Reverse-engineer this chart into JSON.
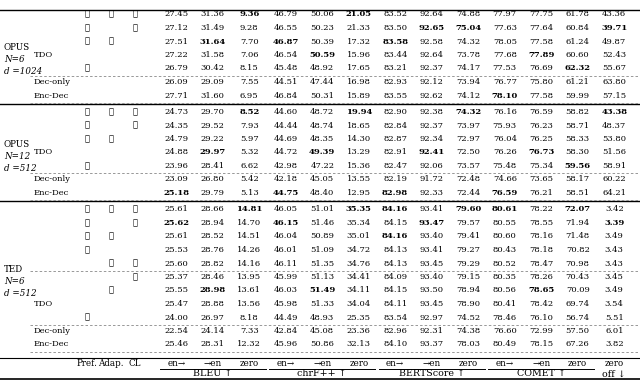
{
  "sections": [
    {
      "left_label": [
        "TED",
        "N=6",
        "d =512"
      ],
      "rows": [
        {
          "model": "Enc-Dec",
          "pref": "",
          "adap": "",
          "cl": "",
          "vals": [
            "25.46",
            "28.31",
            "12.32",
            "45.96",
            "50.86",
            "32.13",
            "84.10",
            "93.37",
            "78.03",
            "80.49",
            "78.15",
            "67.26",
            "3.82"
          ],
          "bold": [],
          "dash_after": true
        },
        {
          "model": "Dec-only",
          "pref": "",
          "adap": "",
          "cl": "",
          "vals": [
            "22.54",
            "24.14",
            "7.33",
            "42.84",
            "45.08",
            "23.36",
            "82.96",
            "92.31",
            "74.38",
            "76.60",
            "72.99",
            "57.50",
            "6.01"
          ],
          "bold": [],
          "dash_after": false
        },
        {
          "model": "Dec-only",
          "pref": "✓",
          "adap": "",
          "cl": "",
          "vals": [
            "24.00",
            "26.97",
            "8.18",
            "44.49",
            "48.93",
            "25.35",
            "83.54",
            "92.97",
            "74.52",
            "78.46",
            "76.10",
            "56.74",
            "5.51"
          ],
          "bold": [],
          "dash_after": true
        },
        {
          "model": "TDO",
          "pref": "",
          "adap": "",
          "cl": "",
          "vals": [
            "25.47",
            "28.88",
            "13.56",
            "45.98",
            "51.33",
            "34.04",
            "84.11",
            "93.45",
            "78.90",
            "80.41",
            "78.42",
            "69.74",
            "3.54"
          ],
          "bold": [],
          "dash_after": false
        },
        {
          "model": "TDO",
          "pref": "",
          "adap": "✓",
          "cl": "",
          "vals": [
            "25.55",
            "28.98",
            "13.61",
            "46.03",
            "51.49",
            "34.11",
            "84.15",
            "93.50",
            "78.94",
            "80.56",
            "78.65",
            "70.09",
            "3.49"
          ],
          "bold": [
            "28.98",
            "51.49",
            "78.65"
          ],
          "dash_after": false
        },
        {
          "model": "TDO",
          "pref": "",
          "adap": "",
          "cl": "✓",
          "vals": [
            "25.37",
            "28.46",
            "13.95",
            "45.99",
            "51.13",
            "34.41",
            "84.09",
            "93.40",
            "79.15",
            "80.35",
            "78.26",
            "70.43",
            "3.45"
          ],
          "bold": [],
          "dash_after": false
        },
        {
          "model": "TDO",
          "pref": "",
          "adap": "✓",
          "cl": "✓",
          "vals": [
            "25.60",
            "28.82",
            "14.16",
            "46.11",
            "51.35",
            "34.76",
            "84.13",
            "93.45",
            "79.29",
            "80.52",
            "78.47",
            "70.98",
            "3.43"
          ],
          "bold": [],
          "dash_after": true
        },
        {
          "model": "TDO",
          "pref": "✓",
          "adap": "",
          "cl": "",
          "vals": [
            "25.53",
            "28.76",
            "14.26",
            "46.01",
            "51.09",
            "34.72",
            "84.13",
            "93.41",
            "79.27",
            "80.43",
            "78.18",
            "70.82",
            "3.43"
          ],
          "bold": [],
          "dash_after": false
        },
        {
          "model": "TDO",
          "pref": "✓",
          "adap": "✓",
          "cl": "",
          "vals": [
            "25.61",
            "28.52",
            "14.51",
            "46.04",
            "50.89",
            "35.01",
            "84.16",
            "93.40",
            "79.41",
            "80.60",
            "78.16",
            "71.48",
            "3.49"
          ],
          "bold": [
            "84.16"
          ],
          "dash_after": false
        },
        {
          "model": "TDO",
          "pref": "✓",
          "adap": "",
          "cl": "✓",
          "vals": [
            "25.62",
            "28.94",
            "14.70",
            "46.15",
            "51.46",
            "35.34",
            "84.15",
            "93.47",
            "79.57",
            "80.55",
            "78.55",
            "71.94",
            "3.39"
          ],
          "bold": [
            "25.62",
            "46.15",
            "93.47",
            "3.39"
          ],
          "dash_after": false
        },
        {
          "model": "TDO",
          "pref": "✓",
          "adap": "✓",
          "cl": "✓",
          "vals": [
            "25.61",
            "28.66",
            "14.81",
            "46.05",
            "51.01",
            "35.35",
            "84.16",
            "93.41",
            "79.60",
            "80.61",
            "78.22",
            "72.07",
            "3.42"
          ],
          "bold": [
            "14.81",
            "35.35",
            "84.16",
            "79.60",
            "80.61",
            "72.07"
          ],
          "dash_after": false
        }
      ]
    },
    {
      "left_label": [
        "OPUS",
        "N=12",
        "d =512"
      ],
      "rows": [
        {
          "model": "Enc-Dec",
          "pref": "",
          "adap": "",
          "cl": "",
          "vals": [
            "25.18",
            "29.79",
            "5.13",
            "44.75",
            "48.40",
            "12.95",
            "82.98",
            "92.33",
            "72.44",
            "76.59",
            "76.21",
            "58.51",
            "64.21"
          ],
          "bold": [
            "25.18",
            "44.75",
            "82.98",
            "76.59"
          ],
          "dash_after": true
        },
        {
          "model": "Dec-only",
          "pref": "",
          "adap": "",
          "cl": "",
          "vals": [
            "23.09",
            "26.80",
            "5.42",
            "42.18",
            "45.05",
            "13.55",
            "82.19",
            "91.72",
            "72.48",
            "74.66",
            "73.65",
            "58.17",
            "60.22"
          ],
          "bold": [],
          "dash_after": false
        },
        {
          "model": "Dec-only",
          "pref": "✓",
          "adap": "",
          "cl": "",
          "vals": [
            "23.96",
            "28.41",
            "6.62",
            "42.98",
            "47.22",
            "15.36",
            "82.47",
            "92.06",
            "73.57",
            "75.48",
            "75.34",
            "59.56",
            "58.91"
          ],
          "bold": [
            "59.56"
          ],
          "dash_after": true
        },
        {
          "model": "TDO",
          "pref": "",
          "adap": "",
          "cl": "",
          "vals": [
            "24.88",
            "29.97",
            "5.32",
            "44.72",
            "49.39",
            "13.29",
            "82.91",
            "92.41",
            "72.50",
            "76.26",
            "76.73",
            "58.30",
            "51.56"
          ],
          "bold": [
            "29.97",
            "49.39",
            "92.41",
            "76.73"
          ],
          "dash_after": false
        },
        {
          "model": "TDO",
          "pref": "✓",
          "adap": "✓",
          "cl": "",
          "vals": [
            "24.79",
            "29.22",
            "5.97",
            "44.69",
            "48.35",
            "14.30",
            "82.87",
            "92.34",
            "72.97",
            "76.04",
            "76.25",
            "58.33",
            "53.80"
          ],
          "bold": [],
          "dash_after": false
        },
        {
          "model": "TDO",
          "pref": "✓",
          "adap": "",
          "cl": "✓",
          "vals": [
            "24.35",
            "29.52",
            "7.93",
            "44.44",
            "48.74",
            "18.65",
            "82.84",
            "92.37",
            "73.97",
            "75.93",
            "76.23",
            "58.71",
            "48.37"
          ],
          "bold": [],
          "dash_after": false
        },
        {
          "model": "TDO",
          "pref": "✓",
          "adap": "✓",
          "cl": "✓",
          "vals": [
            "24.73",
            "29.70",
            "8.52",
            "44.60",
            "48.72",
            "19.94",
            "82.90",
            "92.38",
            "74.32",
            "76.16",
            "76.59",
            "58.82",
            "43.38"
          ],
          "bold": [
            "8.52",
            "19.94",
            "74.32",
            "43.38"
          ],
          "dash_after": false
        }
      ]
    },
    {
      "left_label": [
        "OPUS",
        "N=6",
        "d =1024"
      ],
      "rows": [
        {
          "model": "Enc-Dec",
          "pref": "",
          "adap": "",
          "cl": "",
          "vals": [
            "27.71",
            "31.60",
            "6.95",
            "46.84",
            "50.31",
            "15.89",
            "83.55",
            "92.62",
            "74.12",
            "78.10",
            "77.58",
            "59.99",
            "57.15"
          ],
          "bold": [
            "78.10"
          ],
          "dash_after": true
        },
        {
          "model": "Dec-only",
          "pref": "",
          "adap": "",
          "cl": "",
          "vals": [
            "26.09",
            "29.09",
            "7.55",
            "44.51",
            "47.44",
            "16.98",
            "82.93",
            "92.12",
            "73.94",
            "76.77",
            "75.80",
            "61.21",
            "63.80"
          ],
          "bold": [],
          "dash_after": false
        },
        {
          "model": "Dec-only",
          "pref": "✓",
          "adap": "",
          "cl": "",
          "vals": [
            "26.79",
            "30.42",
            "8.15",
            "45.48",
            "48.92",
            "17.65",
            "83.21",
            "92.37",
            "74.17",
            "77.53",
            "76.69",
            "62.32",
            "55.67"
          ],
          "bold": [
            "62.32"
          ],
          "dash_after": true
        },
        {
          "model": "TDO",
          "pref": "",
          "adap": "",
          "cl": "",
          "vals": [
            "27.22",
            "31.58",
            "7.06",
            "46.54",
            "50.59",
            "15.96",
            "83.44",
            "92.64",
            "73.78",
            "77.68",
            "77.89",
            "60.60",
            "52.43"
          ],
          "bold": [
            "50.59",
            "77.89"
          ],
          "dash_after": false
        },
        {
          "model": "TDO",
          "pref": "✓",
          "adap": "✓",
          "cl": "",
          "vals": [
            "27.51",
            "31.64",
            "7.70",
            "46.87",
            "50.39",
            "17.32",
            "83.58",
            "92.58",
            "74.32",
            "78.05",
            "77.58",
            "61.24",
            "49.87"
          ],
          "bold": [
            "31.64",
            "46.87",
            "83.58"
          ],
          "dash_after": false
        },
        {
          "model": "TDO",
          "pref": "✓",
          "adap": "",
          "cl": "✓",
          "vals": [
            "27.12",
            "31.49",
            "9.28",
            "46.55",
            "50.23",
            "21.33",
            "83.50",
            "92.65",
            "75.04",
            "77.63",
            "77.64",
            "60.84",
            "39.71"
          ],
          "bold": [
            "92.65",
            "75.04",
            "39.71"
          ],
          "dash_after": false
        },
        {
          "model": "TDO",
          "pref": "✓",
          "adap": "✓",
          "cl": "✓",
          "vals": [
            "27.45",
            "31.36",
            "9.36",
            "46.79",
            "50.06",
            "21.05",
            "83.52",
            "92.64",
            "74.88",
            "77.97",
            "77.75",
            "61.78",
            "43.36"
          ],
          "bold": [
            "9.36",
            "21.05"
          ],
          "dash_after": false
        }
      ]
    }
  ],
  "col_groups": [
    {
      "label": "BLEU ↑",
      "span": 3
    },
    {
      "label": "chrF++ ↑",
      "span": 3
    },
    {
      "label": "BERTScore ↑",
      "span": 3
    },
    {
      "label": "COMET ↑",
      "span": 3
    },
    {
      "label": "off ↓",
      "span": 1
    }
  ],
  "subheaders": [
    "en→",
    "→en",
    "zero",
    "en→",
    "→en",
    "zero",
    "en→",
    "→en",
    "zero",
    "en→",
    "→en",
    "zero",
    "zero"
  ],
  "fixed_headers": [
    "Pref.",
    "Adap.",
    "CL"
  ]
}
